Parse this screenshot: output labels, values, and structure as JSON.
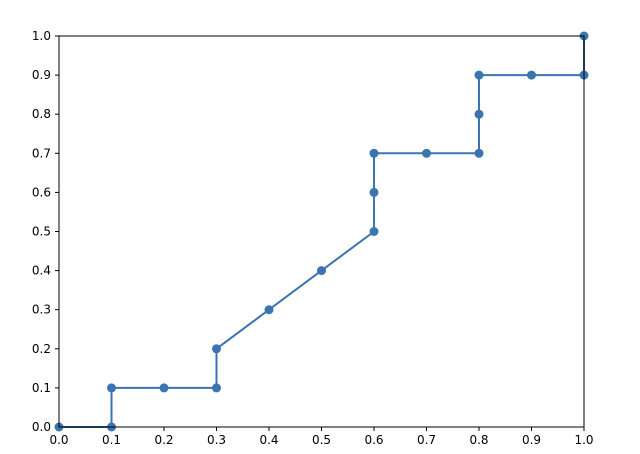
{
  "chart_data": {
    "type": "line",
    "title": "",
    "xlabel": "",
    "ylabel": "",
    "xlim": [
      0.0,
      1.0
    ],
    "ylim": [
      0.0,
      1.0
    ],
    "grid": false,
    "color": "#3a75b0",
    "x_ticks": [
      "0.0",
      "0.1",
      "0.2",
      "0.3",
      "0.4",
      "0.5",
      "0.6",
      "0.7",
      "0.8",
      "0.9",
      "1.0"
    ],
    "y_ticks": [
      "0.0",
      "0.1",
      "0.2",
      "0.3",
      "0.4",
      "0.5",
      "0.6",
      "0.7",
      "0.8",
      "0.9",
      "1.0"
    ],
    "series": [
      {
        "x": [
          0.0,
          0.1,
          0.1,
          0.2,
          0.3,
          0.3,
          0.4,
          0.5,
          0.6,
          0.6,
          0.6,
          0.7,
          0.8,
          0.8,
          0.8,
          0.9,
          1.0,
          1.0
        ],
        "y": [
          0.0,
          0.0,
          0.1,
          0.1,
          0.1,
          0.2,
          0.3,
          0.4,
          0.5,
          0.6,
          0.7,
          0.7,
          0.7,
          0.8,
          0.9,
          0.9,
          0.9,
          1.0
        ]
      }
    ]
  }
}
